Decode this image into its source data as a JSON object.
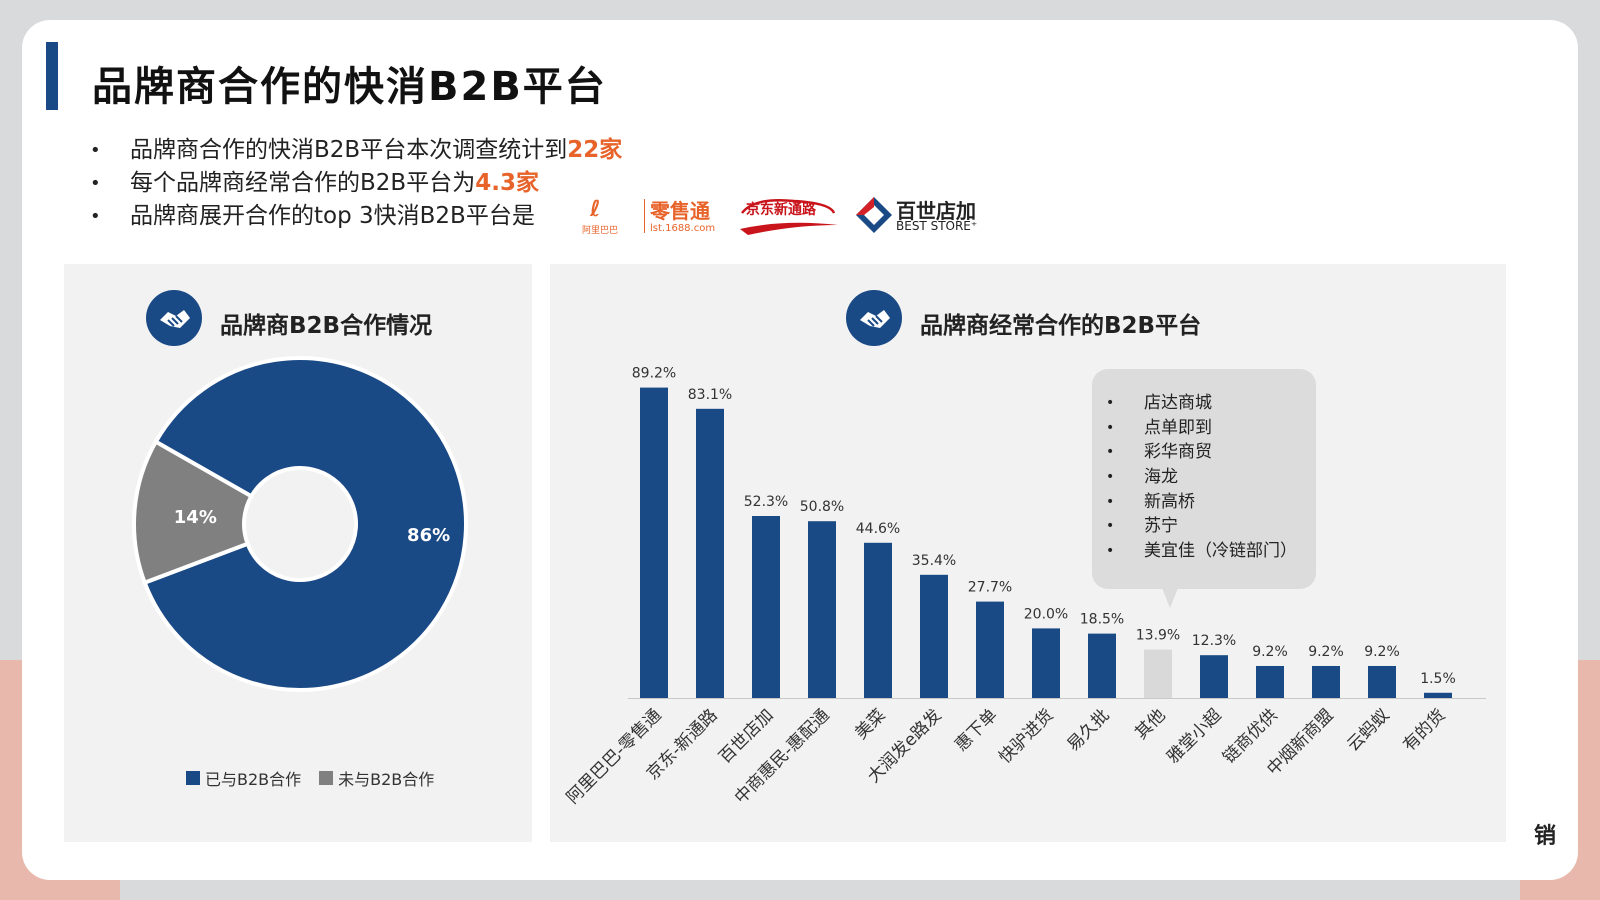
{
  "slide": {
    "title": "品牌商合作的快消B2B平台",
    "bullets": [
      {
        "text": "品牌商合作的快消B2B平台本次调查统计到",
        "highlight": "22家"
      },
      {
        "text": "每个品牌商经常合作的B2B平台为",
        "highlight": "4.3家"
      },
      {
        "text": "品牌商展开合作的top 3快消B2B平台是",
        "highlight": ""
      }
    ],
    "bullet_marker": "•",
    "logos": {
      "alibaba": {
        "mark": "ℓ",
        "small": "阿里巴巴",
        "name": "零售通",
        "url": "lst.1688.com"
      },
      "jd": {
        "name": "京东新通路"
      },
      "bests": {
        "cn": "百世店加",
        "en": "BEST STORE⁺"
      }
    },
    "watermark": "销"
  },
  "colors": {
    "primary": "#1a4a85",
    "secondary": "#808080",
    "other": "#d9d9d9",
    "accent": "#e8632a"
  },
  "left_panel": {
    "title": "品牌商B2B合作情况",
    "icon": "handshake-icon"
  },
  "right_panel": {
    "title": "品牌商经常合作的B2B平台",
    "icon": "handshake-icon",
    "callout_items": [
      "店达商城",
      "点单即到",
      "彩华商贸",
      "海龙",
      "新高桥",
      "苏宁",
      "美宜佳（冷链部门）"
    ]
  },
  "chart_data": [
    {
      "type": "pie",
      "donut": true,
      "title": "品牌商B2B合作情况",
      "categories": [
        "已与B2B合作",
        "未与B2B合作"
      ],
      "values": [
        86,
        14
      ],
      "labels": [
        "86%",
        "14%"
      ],
      "legend": "bottom"
    },
    {
      "type": "bar",
      "title": "品牌商经常合作的B2B平台",
      "categories": [
        "阿里巴巴-零售通",
        "京东-新通路",
        "百世店加",
        "中商惠民-惠配通",
        "美菜",
        "大润发e路发",
        "惠下单",
        "快驴进货",
        "易久批",
        "其他",
        "雅堂小超",
        "链商优供",
        "中烟新商盟",
        "云蚂蚁",
        "有的货"
      ],
      "values": [
        89.2,
        83.1,
        52.3,
        50.8,
        44.6,
        35.4,
        27.7,
        20.0,
        18.5,
        13.9,
        12.3,
        9.2,
        9.2,
        9.2,
        1.5
      ],
      "labels": [
        "89.2%",
        "83.1%",
        "52.3%",
        "50.8%",
        "44.6%",
        "35.4%",
        "27.7%",
        "20.0%",
        "18.5%",
        "13.9%",
        "12.3%",
        "9.2%",
        "9.2%",
        "9.2%",
        "1.5%"
      ],
      "highlight_category": "其他",
      "ylim": [
        0,
        100
      ],
      "grid": false
    }
  ]
}
